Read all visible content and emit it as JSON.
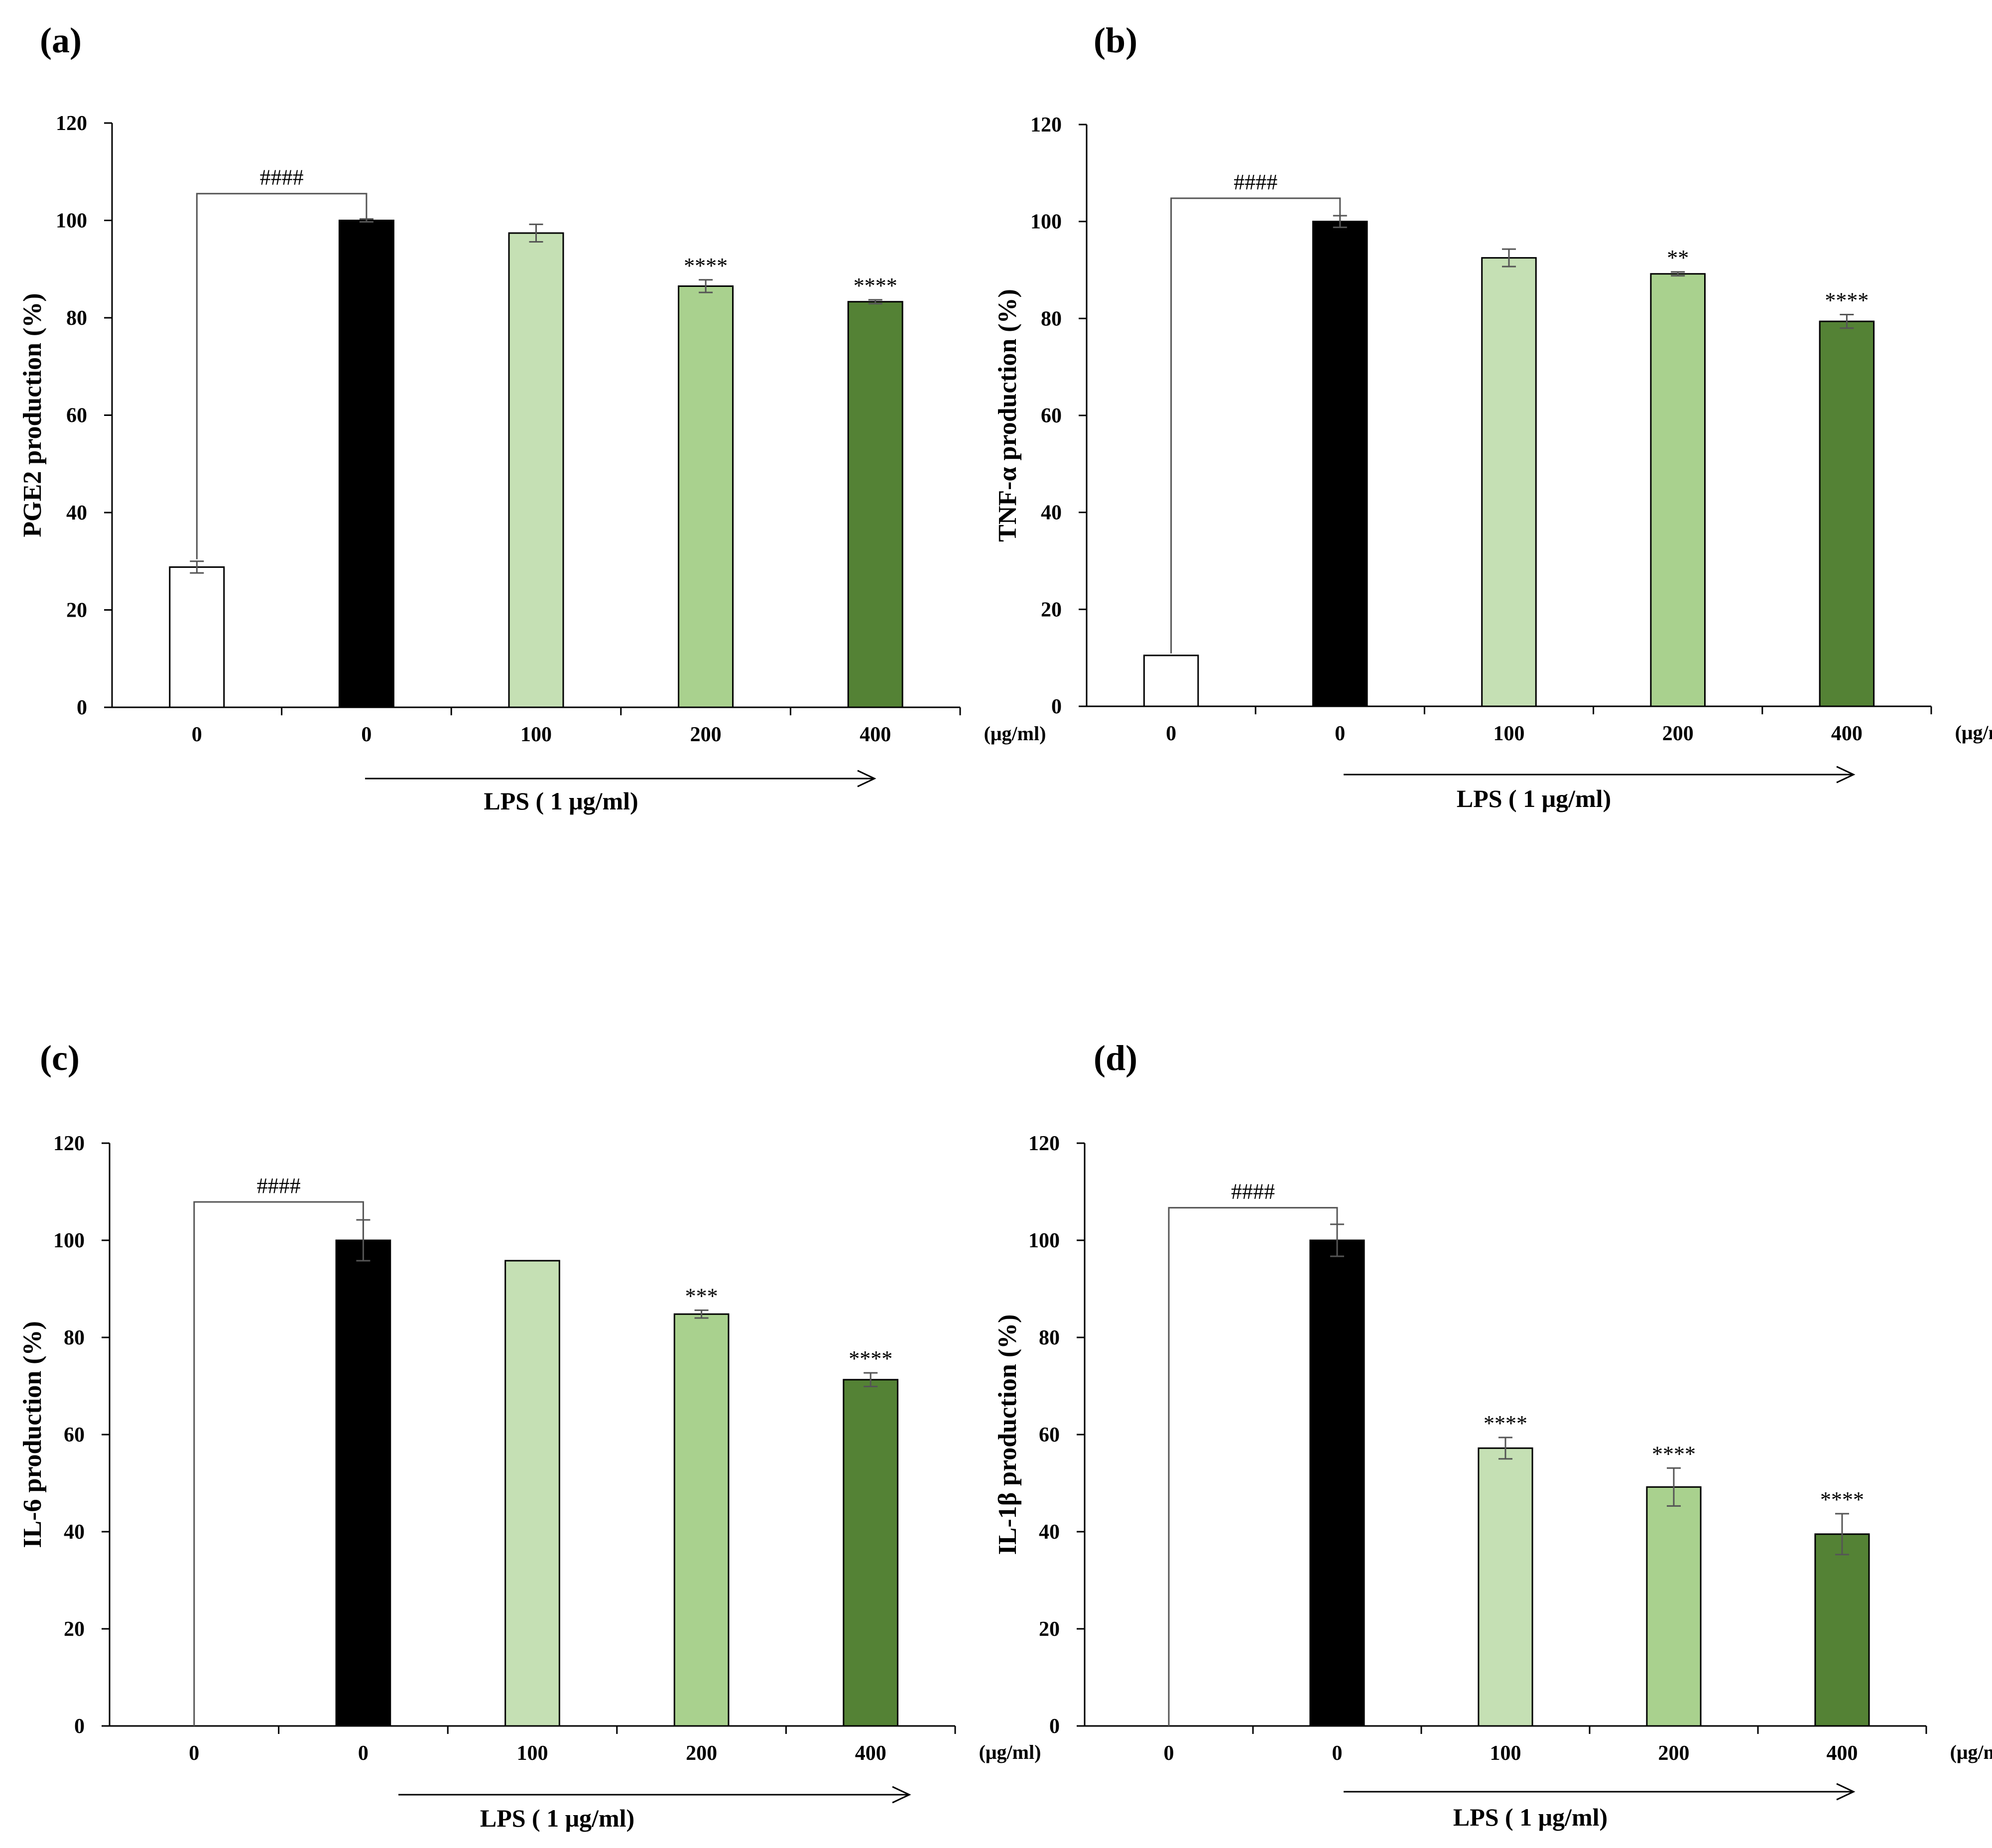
{
  "figure": {
    "x_unit_label": "(μg/ml)",
    "lps_label": "LPS ( 1 μg/ml)",
    "bar_colors": [
      "#ffffff",
      "#000000",
      "#c5e0b4",
      "#a9d18e",
      "#548235"
    ]
  },
  "chart_data": [
    {
      "type": "bar",
      "panel_label": "(a)",
      "ylabel": "PGE2  production  (%)",
      "categories": [
        "0",
        "0",
        "100",
        "200",
        "400"
      ],
      "values": [
        28.8,
        100,
        97.4,
        86.5,
        83.3
      ],
      "errors": [
        1.2,
        0.3,
        1.8,
        1.3,
        0.4
      ],
      "significance": [
        "",
        "",
        "",
        "****",
        "****"
      ],
      "bracket": {
        "label": "####",
        "from": 0,
        "to": 1,
        "level": 105.5
      },
      "ylim": [
        0,
        120
      ],
      "yticks": [
        "0",
        "20",
        "40",
        "60",
        "80",
        "100",
        "120"
      ],
      "grid": false
    },
    {
      "type": "bar",
      "panel_label": "(b)",
      "ylabel": "TNF-α production  (%)",
      "categories": [
        "0",
        "0",
        "100",
        "200",
        "400"
      ],
      "values": [
        10.5,
        100,
        92.5,
        89.2,
        79.4
      ],
      "errors": [
        0,
        1.2,
        1.8,
        0.4,
        1.4
      ],
      "significance": [
        "",
        "",
        "",
        "**",
        "****"
      ],
      "bracket": {
        "label": "####",
        "from": 0,
        "to": 1,
        "level": 104.8
      },
      "ylim": [
        0,
        120
      ],
      "yticks": [
        "0",
        "20",
        "40",
        "60",
        "80",
        "100",
        "120"
      ],
      "grid": false
    },
    {
      "type": "bar",
      "panel_label": "(c)",
      "ylabel": "IL-6 production  (%)",
      "categories": [
        "0",
        "0",
        "100",
        "200",
        "400"
      ],
      "values": [
        0,
        100,
        95.8,
        84.8,
        71.3
      ],
      "errors": [
        0,
        4.2,
        0,
        0.8,
        1.4
      ],
      "significance": [
        "",
        "",
        "",
        "***",
        "****"
      ],
      "bracket": {
        "label": "####",
        "from": 0,
        "to": 1,
        "level": 107.9
      },
      "ylim": [
        0,
        120
      ],
      "yticks": [
        "0",
        "20",
        "40",
        "60",
        "80",
        "100",
        "120"
      ],
      "grid": false
    },
    {
      "type": "bar",
      "panel_label": "(d)",
      "ylabel": "IL-1β production  (%)",
      "categories": [
        "0",
        "0",
        "100",
        "200",
        "400"
      ],
      "values": [
        0,
        100,
        57.2,
        49.2,
        39.5
      ],
      "errors": [
        0,
        3.3,
        2.2,
        3.9,
        4.2
      ],
      "significance": [
        "",
        "",
        "****",
        "****",
        "****"
      ],
      "bracket": {
        "label": "####",
        "from": 0,
        "to": 1,
        "level": 106.7
      },
      "ylim": [
        0,
        120
      ],
      "yticks": [
        "0",
        "20",
        "40",
        "60",
        "80",
        "100",
        "120"
      ],
      "grid": false
    }
  ]
}
